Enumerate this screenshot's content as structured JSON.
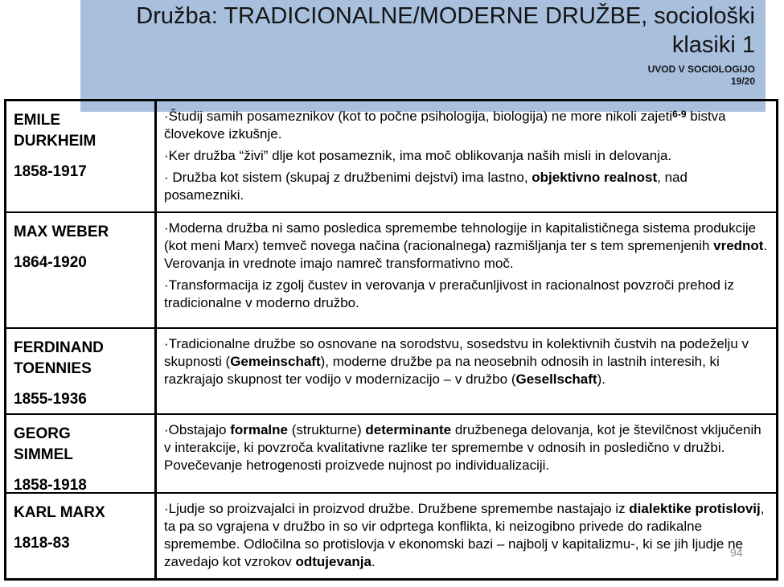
{
  "header": {
    "title_lines": [
      "Družba: TRADICIONALNE/MODERNE DRUŽBE, sociološki",
      "klasiki 1"
    ],
    "course": "UVOD V SOCIOLOGIJO",
    "term": "19/20",
    "background_color": "#a8c0de"
  },
  "page_number": "94",
  "table": {
    "rows": [
      {
        "name_lines": [
          "EMILE",
          "DURKHEIM"
        ],
        "years": "1858-1917",
        "paragraphs": [
          [
            {
              "t": "·Študij samih posameznikov (kot to počne psihologija, biologija) ne more nikoli zajeti"
            },
            {
              "t": "6-9",
              "sup": true
            },
            {
              "t": " bistva človekove izkušnje."
            }
          ],
          [
            {
              "t": "·Ker družba “živi” dlje kot posameznik, ima moč oblikovanja naših misli in delovanja."
            }
          ],
          [
            {
              "t": "· Družba kot sistem (skupaj z družbenimi dejstvi) ima lastno, "
            },
            {
              "t": "objektivno realnost",
              "b": true
            },
            {
              "t": ", nad posamezniki."
            }
          ]
        ]
      },
      {
        "name_lines": [
          "MAX WEBER"
        ],
        "years": "1864-1920",
        "paragraphs": [
          [
            {
              "t": "·Moderna družba ni samo posledica spremembe tehnologije in kapitalističnega sistema produkcije (kot meni Marx)  temveč novega načina (racionalnega) razmišljanja ter s tem spremenjenih "
            },
            {
              "t": "vrednot",
              "b": true
            },
            {
              "t": ". Verovanja in vrednote imajo namreč transformativno moč."
            }
          ],
          [
            {
              "t": "·Transformacija iz zgolj čustev in verovanja v preračunljivost in racionalnost povzroči prehod iz tradicionalne v moderno družbo."
            }
          ]
        ]
      },
      {
        "name_lines": [
          "FERDINAND",
          "TOENNIES"
        ],
        "years": "1855-1936",
        "paragraphs": [
          [
            {
              "t": "·Tradicionalne družbe so osnovane na sorodstvu, sosedstvu in kolektivnih čustvih na podeželju v skupnosti ("
            },
            {
              "t": "Gemeinschaft",
              "b": true
            },
            {
              "t": "), moderne družbe pa na neosebnih odnosih in lastnih interesih, ki razkrajajo skupnost ter vodijo v modernizacijo –  v družbo ("
            },
            {
              "t": "Gesellschaft",
              "b": true
            },
            {
              "t": ")."
            }
          ]
        ]
      },
      {
        "name_lines": [
          "GEORG",
          "SIMMEL"
        ],
        "years": "1858-1918",
        "paragraphs": [
          [
            {
              "t": "·Obstajajo "
            },
            {
              "t": "formalne",
              "b": true
            },
            {
              "t": " (strukturne) "
            },
            {
              "t": "determinante",
              "b": true
            },
            {
              "t": " družbenega delovanja, kot je številčnost vključenih v interakcije, ki povzroča kvalitativne razlike ter spremembe v odnosih in posledično v družbi. Povečevanje hetrogenosti proizvede nujnost po individualizaciji."
            }
          ]
        ]
      },
      {
        "name_lines": [
          "KARL MARX"
        ],
        "years": "1818-83",
        "paragraphs": [
          [
            {
              "t": "·Ljudje so proizvajalci in proizvod družbe. Družbene spremembe nastajajo iz "
            },
            {
              "t": "dialektike protislovij",
              "b": true
            },
            {
              "t": ", ta pa so vgrajena v družbo in so vir odprtega konflikta, ki neizogibno privede do radikalne spremembe. Odločilna so protislovja v ekonomski bazi – najbolj v kapitalizmu-, ki se jih ljudje ne zavedajo kot vzrokov "
            },
            {
              "t": "odtujevanja",
              "b": true
            },
            {
              "t": "."
            }
          ]
        ]
      }
    ]
  }
}
